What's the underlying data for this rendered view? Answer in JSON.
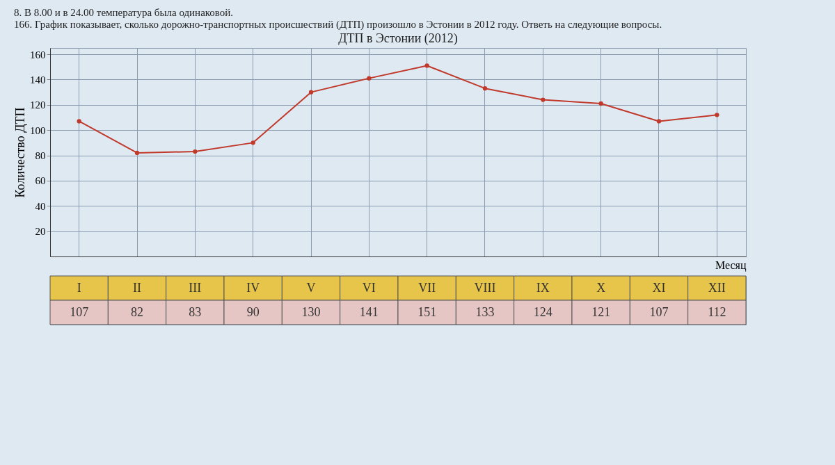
{
  "chart_data": {
    "type": "line",
    "title": "ДТП в Эстонии (2012)",
    "xlabel": "Месяц",
    "ylabel": "Количество ДТП",
    "annotations": [
      "8. В 8.00 и в 24.00 температура была одинаковой.",
      "166. График показывает, сколько дорожно-транспортных происшествий (ДТП) произошло в Эстонии в 2012 году. Ответь на следующие вопросы."
    ],
    "categories": [
      "I",
      "II",
      "III",
      "IV",
      "V",
      "VI",
      "VII",
      "VIII",
      "IX",
      "X",
      "XI",
      "XII"
    ],
    "values": [
      107,
      82,
      83,
      90,
      130,
      141,
      151,
      133,
      124,
      121,
      107,
      112
    ],
    "color": "#c0392b",
    "marker": "circle",
    "line_style": "solid",
    "ylim": [
      0,
      165
    ],
    "yticks": [
      20,
      40,
      60,
      80,
      100,
      120,
      140,
      160
    ],
    "grid": true,
    "data_labels": true
  }
}
